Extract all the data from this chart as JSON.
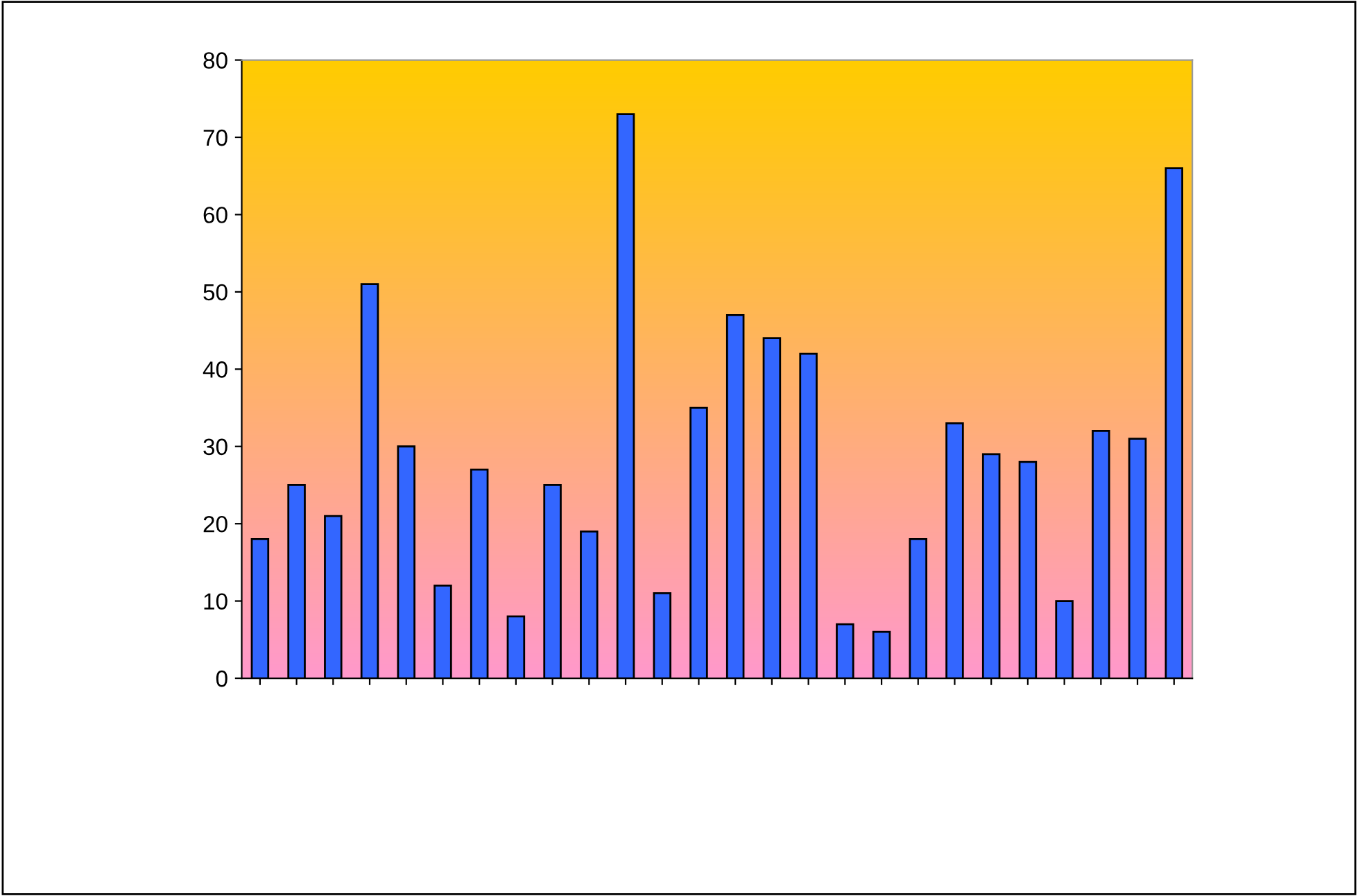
{
  "chart_data": {
    "type": "bar",
    "categories": [
      null,
      null,
      null,
      null,
      null,
      null,
      null,
      null,
      null,
      null,
      null,
      null,
      null,
      null,
      null,
      null,
      null,
      null,
      null,
      null,
      null,
      null,
      null,
      null,
      null,
      null
    ],
    "values": [
      18,
      25,
      21,
      51,
      30,
      12,
      27,
      8,
      25,
      19,
      73,
      11,
      35,
      47,
      44,
      42,
      7,
      6,
      18,
      33,
      29,
      28,
      10,
      32,
      31,
      66
    ],
    "color": "#3366ff",
    "ylim": [
      0,
      80
    ],
    "yticks": [
      0,
      10,
      20,
      30,
      40,
      50,
      60,
      70,
      80
    ],
    "grid": false,
    "legend": false
  }
}
